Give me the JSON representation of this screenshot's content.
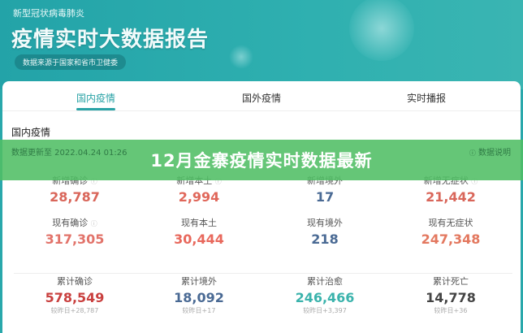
{
  "header": {
    "subtitle": "新型冠状病毒肺炎",
    "title": "疫情实时大数据报告",
    "source": "数据来源于国家和省市卫健委"
  },
  "tabs": [
    {
      "label": "国内疫情",
      "active": true
    },
    {
      "label": "国外疫情"
    },
    {
      "label": "实时播报"
    }
  ],
  "section": {
    "title": "国内疫情",
    "updated": "数据更新至 2022.04.24 01:26",
    "explain": "数据说明",
    "help_icon": "question-circle-icon"
  },
  "stats": [
    {
      "label": "新增确诊",
      "value": "28,787",
      "color": "#d9665a",
      "help": true
    },
    {
      "label": "新增本土",
      "value": "2,994",
      "color": "#e0675a",
      "help": true
    },
    {
      "label": "新增境外",
      "value": "17",
      "color": "#4a6a94"
    },
    {
      "label": "新增无症状",
      "value": "21,442",
      "color": "#d9665a",
      "help": true
    },
    {
      "label": "现有确诊",
      "value": "317,305",
      "color": "#e2736a",
      "help": true
    },
    {
      "label": "现有本土",
      "value": "30,444",
      "color": "#e8685c"
    },
    {
      "label": "现有境外",
      "value": "218",
      "color": "#4a6a94"
    },
    {
      "label": "现有无症状",
      "value": "247,348",
      "color": "#e3785f"
    },
    {
      "label": "累计确诊",
      "value": "578,549",
      "color": "#c9403f",
      "compare": "较昨日+28,787"
    },
    {
      "label": "累计境外",
      "value": "18,092",
      "color": "#4a6a94",
      "compare": "较昨日+17"
    },
    {
      "label": "累计治愈",
      "value": "246,466",
      "color": "#3bb3ac",
      "compare": "较昨日+3,397"
    },
    {
      "label": "累计死亡",
      "value": "14,778",
      "color": "#444444",
      "compare": "较昨日+36"
    }
  ],
  "banner": {
    "text": "12月金寨疫情实时数据最新"
  }
}
